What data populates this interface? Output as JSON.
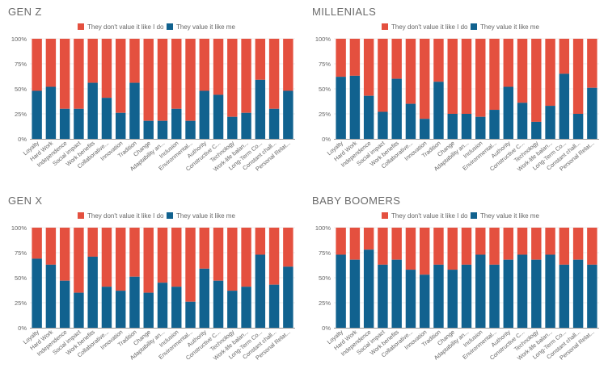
{
  "colors": {
    "red": "#E4503F",
    "blue": "#11628F",
    "axis": "#999999",
    "grid": "#eeeeee",
    "text": "#666666"
  },
  "legend": {
    "red_label": "They don't value it like I do",
    "blue_label": "They value it like me"
  },
  "chart_data": [
    {
      "type": "bar",
      "stacked": true,
      "title": "GEN Z",
      "categories": [
        "Loyalty",
        "Hard Work",
        "Independence",
        "Social impact",
        "Work benefits",
        "Collaborative...",
        "Innovation",
        "Tradition",
        "Change",
        "Adaptability an...",
        "Inclusion",
        "Environmental...",
        "Authority",
        "Constructive C...",
        "Technology",
        "Work-life balan...",
        "Long-Term Co...",
        "Constant chall...",
        "Personal Relat..."
      ],
      "ylim": [
        0,
        100
      ],
      "yticks": [
        "0%",
        "25%",
        "50%",
        "75%",
        "100%"
      ],
      "legend_position": "top",
      "series": [
        {
          "name": "They value it like me",
          "values": [
            48,
            52,
            30,
            30,
            56,
            41,
            26,
            56,
            18,
            18,
            30,
            18,
            48,
            44,
            22,
            26,
            59,
            30,
            48
          ]
        },
        {
          "name": "They don't value it like I do",
          "values": [
            52,
            48,
            70,
            70,
            44,
            59,
            74,
            44,
            82,
            82,
            70,
            82,
            52,
            56,
            78,
            74,
            41,
            70,
            52
          ]
        }
      ]
    },
    {
      "type": "bar",
      "stacked": true,
      "title": "MILLENIALS",
      "categories": [
        "Loyalty",
        "Hard Work",
        "Independence",
        "Social impact",
        "Work benefits",
        "Collaborative...",
        "Innovation",
        "Tradition",
        "Change",
        "Adaptability an...",
        "Inclusion",
        "Environmental...",
        "Authority",
        "Constructive C...",
        "Technology",
        "Work-life balan...",
        "Long-Term Co...",
        "Constant chall...",
        "Personal Relat..."
      ],
      "ylim": [
        0,
        100
      ],
      "yticks": [
        "0%",
        "25%",
        "50%",
        "75%",
        "100%"
      ],
      "legend_position": "top",
      "series": [
        {
          "name": "They value it like me",
          "values": [
            62,
            63,
            43,
            27,
            60,
            35,
            20,
            57,
            25,
            25,
            22,
            29,
            52,
            36,
            17,
            33,
            65,
            25,
            51
          ]
        },
        {
          "name": "They don't value it like I do",
          "values": [
            38,
            37,
            57,
            73,
            40,
            65,
            80,
            43,
            75,
            75,
            78,
            71,
            48,
            64,
            83,
            67,
            35,
            75,
            49
          ]
        }
      ]
    },
    {
      "type": "bar",
      "stacked": true,
      "title": "GEN X",
      "categories": [
        "Loyalty",
        "Hard Work",
        "Independence",
        "Social impact",
        "Work benefits",
        "Collaborative...",
        "Innovation",
        "Tradition",
        "Change",
        "Adaptability an...",
        "Inclusion",
        "Environmental...",
        "Authority",
        "Constructive C...",
        "Technology",
        "Work-life balan...",
        "Long-Term Co...",
        "Constant chall...",
        "Personal Relat..."
      ],
      "ylim": [
        0,
        100
      ],
      "yticks": [
        "0%",
        "25%",
        "50%",
        "75%",
        "100%"
      ],
      "legend_position": "top",
      "series": [
        {
          "name": "They value it like me",
          "values": [
            69,
            63,
            47,
            35,
            71,
            41,
            37,
            51,
            35,
            45,
            41,
            26,
            59,
            47,
            37,
            41,
            73,
            43,
            61
          ]
        },
        {
          "name": "They don't value it like I do",
          "values": [
            31,
            37,
            53,
            65,
            29,
            59,
            63,
            49,
            65,
            55,
            59,
            74,
            41,
            53,
            63,
            59,
            27,
            57,
            39
          ]
        }
      ]
    },
    {
      "type": "bar",
      "stacked": true,
      "title": "BABY BOOMERS",
      "categories": [
        "Loyalty",
        "Hard Work",
        "Independence",
        "Social impact",
        "Work benefits",
        "Collaborative...",
        "Innovation",
        "Tradition",
        "Change",
        "Adaptability an...",
        "Inclusion",
        "Environmental...",
        "Authority",
        "Constructive C...",
        "Technology",
        "Work-life balan...",
        "Long-Term Co...",
        "Constant chall...",
        "Personal Relat..."
      ],
      "ylim": [
        0,
        100
      ],
      "yticks": [
        "0%",
        "25%",
        "50%",
        "75%",
        "100%"
      ],
      "legend_position": "top",
      "series": [
        {
          "name": "They value it like me",
          "values": [
            73,
            68,
            78,
            63,
            68,
            58,
            53,
            63,
            58,
            63,
            73,
            63,
            68,
            73,
            68,
            73,
            63,
            68,
            63
          ]
        },
        {
          "name": "They don't value it like I do",
          "values": [
            27,
            32,
            22,
            37,
            32,
            42,
            47,
            37,
            42,
            37,
            27,
            37,
            32,
            27,
            32,
            27,
            37,
            32,
            37
          ]
        }
      ]
    }
  ]
}
